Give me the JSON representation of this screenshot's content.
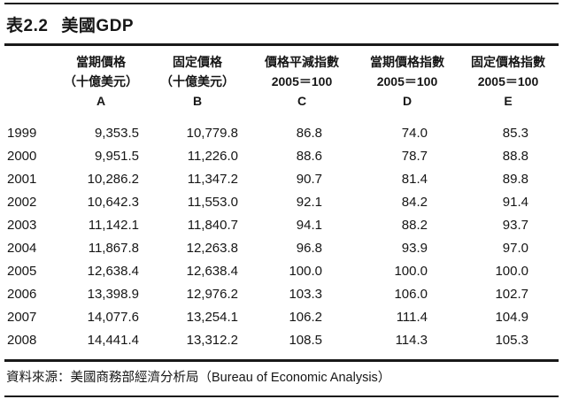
{
  "table": {
    "label": "表2.2",
    "title": "美國GDP",
    "columns": [
      {
        "line1": "當期價格",
        "line2": "（十億美元）",
        "letter": "A"
      },
      {
        "line1": "固定價格",
        "line2": "（十億美元）",
        "letter": "B"
      },
      {
        "line1": "價格平減指數",
        "line2": "2005＝100",
        "letter": "C"
      },
      {
        "line1": "當期價格指數",
        "line2": "2005＝100",
        "letter": "D"
      },
      {
        "line1": "固定價格指數",
        "line2": "2005＝100",
        "letter": "E"
      }
    ],
    "rows": [
      {
        "year": "1999",
        "a": "9,353.5",
        "b": "10,779.8",
        "c": "86.8",
        "d": "74.0",
        "e": "85.3"
      },
      {
        "year": "2000",
        "a": "9,951.5",
        "b": "11,226.0",
        "c": "88.6",
        "d": "78.7",
        "e": "88.8"
      },
      {
        "year": "2001",
        "a": "10,286.2",
        "b": "11,347.2",
        "c": "90.7",
        "d": "81.4",
        "e": "89.8"
      },
      {
        "year": "2002",
        "a": "10,642.3",
        "b": "11,553.0",
        "c": "92.1",
        "d": "84.2",
        "e": "91.4"
      },
      {
        "year": "2003",
        "a": "11,142.1",
        "b": "11,840.7",
        "c": "94.1",
        "d": "88.2",
        "e": "93.7"
      },
      {
        "year": "2004",
        "a": "11,867.8",
        "b": "12,263.8",
        "c": "96.8",
        "d": "93.9",
        "e": "97.0"
      },
      {
        "year": "2005",
        "a": "12,638.4",
        "b": "12,638.4",
        "c": "100.0",
        "d": "100.0",
        "e": "100.0"
      },
      {
        "year": "2006",
        "a": "13,398.9",
        "b": "12,976.2",
        "c": "103.3",
        "d": "106.0",
        "e": "102.7"
      },
      {
        "year": "2007",
        "a": "14,077.6",
        "b": "13,254.1",
        "c": "106.2",
        "d": "111.4",
        "e": "104.9"
      },
      {
        "year": "2008",
        "a": "14,441.4",
        "b": "13,312.2",
        "c": "108.5",
        "d": "114.3",
        "e": "105.3"
      }
    ],
    "source": "資料來源：美國商務部經濟分析局（Bureau of Economic Analysis）"
  },
  "colors": {
    "text": "#161616",
    "rule": "#191919",
    "background": "#ffffff"
  },
  "chart_data": {
    "type": "table",
    "title": "表2.2 美國GDP",
    "columns": [
      "",
      "當期價格（十億美元）A",
      "固定價格（十億美元）B",
      "價格平減指數 2005＝100 C",
      "當期價格指數 2005＝100 D",
      "固定價格指數 2005＝100 E"
    ],
    "rows": [
      [
        1999,
        9353.5,
        10779.8,
        86.8,
        74.0,
        85.3
      ],
      [
        2000,
        9951.5,
        11226.0,
        88.6,
        78.7,
        88.8
      ],
      [
        2001,
        10286.2,
        11347.2,
        90.7,
        81.4,
        89.8
      ],
      [
        2002,
        10642.3,
        11553.0,
        92.1,
        84.2,
        91.4
      ],
      [
        2003,
        11142.1,
        11840.7,
        94.1,
        88.2,
        93.7
      ],
      [
        2004,
        11867.8,
        12263.8,
        96.8,
        93.9,
        97.0
      ],
      [
        2005,
        12638.4,
        12638.4,
        100.0,
        100.0,
        100.0
      ],
      [
        2006,
        13398.9,
        12976.2,
        103.3,
        106.0,
        102.7
      ],
      [
        2007,
        14077.6,
        13254.1,
        106.2,
        111.4,
        104.9
      ],
      [
        2008,
        14441.4,
        13312.2,
        108.5,
        114.3,
        105.3
      ]
    ],
    "source": "美國商務部經濟分析局（Bureau of Economic Analysis）"
  }
}
